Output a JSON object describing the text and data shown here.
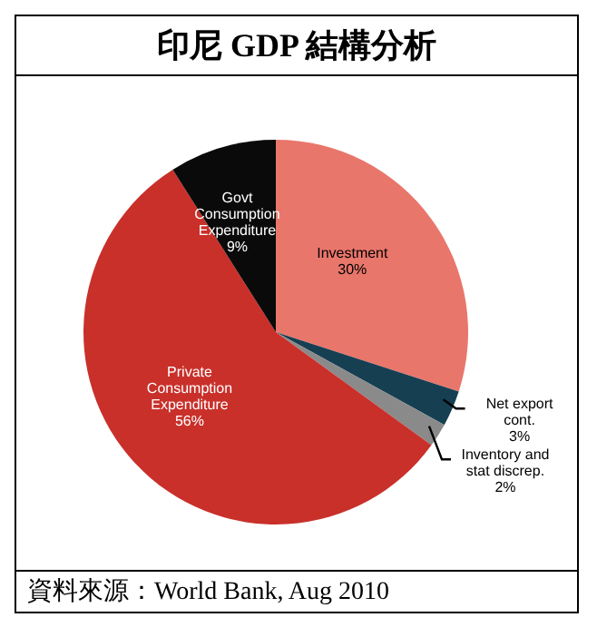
{
  "chart_data": {
    "type": "pie",
    "title": "印尼 GDP 結構分析",
    "categories": [
      "Investment",
      "Net export cont.",
      "Inventory and stat discrep.",
      "Private Consumption Expenditure",
      "Govt Consumption Expenditure"
    ],
    "values": [
      30,
      3,
      2,
      56,
      9
    ],
    "value_labels": [
      "30%",
      "3%",
      "2%",
      "56%",
      "9%"
    ],
    "colors": [
      "#e9766b",
      "#163f52",
      "#8a8a8a",
      "#c9302a",
      "#0a0a0a"
    ],
    "annotations": [
      "資料來源：World Bank, Aug 2010"
    ]
  }
}
